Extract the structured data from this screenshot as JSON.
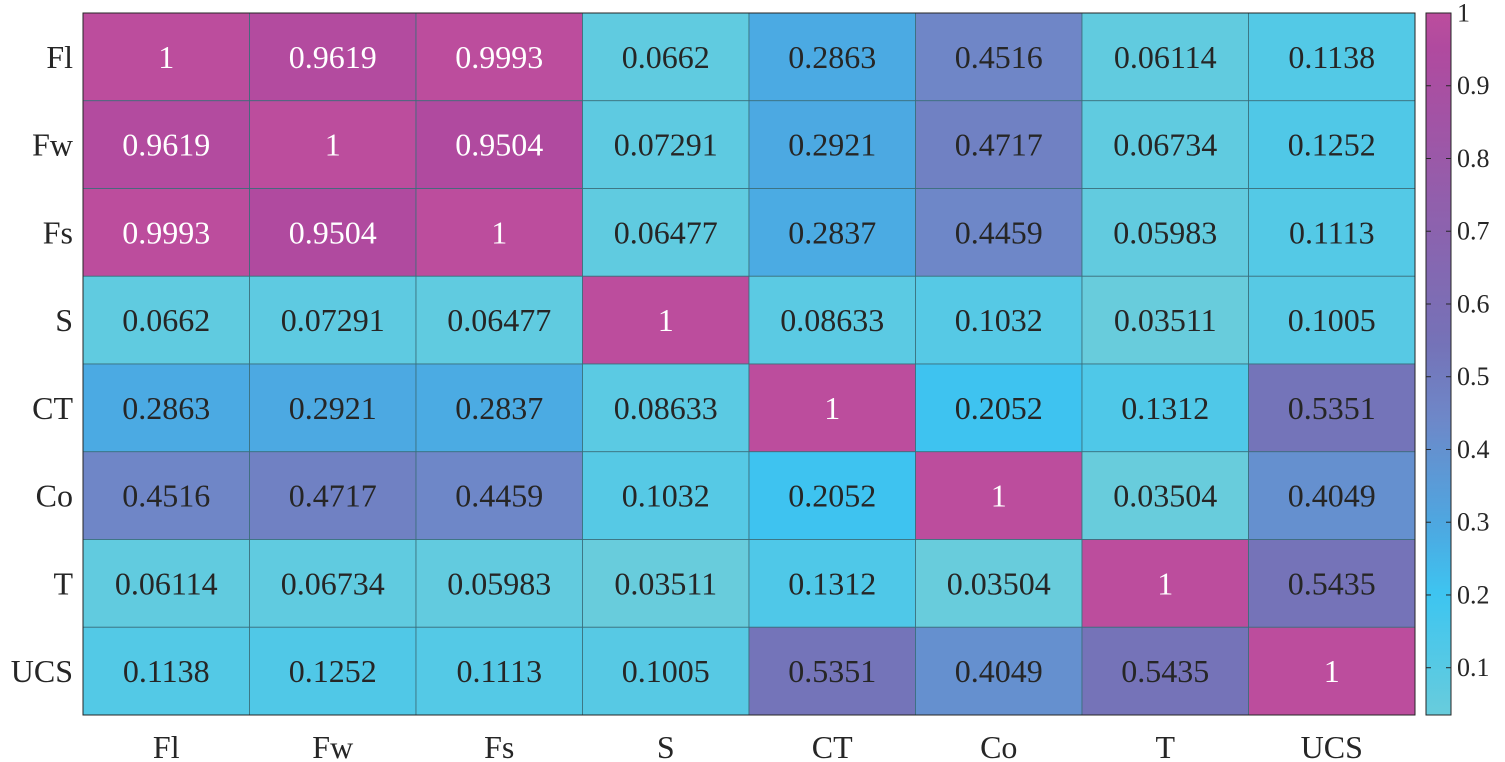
{
  "chart_data": {
    "type": "heatmap",
    "title": "",
    "xlabel": "",
    "ylabel": "",
    "x_categories": [
      "Fl",
      "Fw",
      "Fs",
      "S",
      "CT",
      "Co",
      "T",
      "UCS"
    ],
    "y_categories": [
      "Fl",
      "Fw",
      "Fs",
      "S",
      "CT",
      "Co",
      "T",
      "UCS"
    ],
    "matrix": [
      [
        1,
        0.9619,
        0.9993,
        0.0662,
        0.2863,
        0.4516,
        0.06114,
        0.1138
      ],
      [
        0.9619,
        1,
        0.9504,
        0.07291,
        0.2921,
        0.4717,
        0.06734,
        0.1252
      ],
      [
        0.9993,
        0.9504,
        1,
        0.06477,
        0.2837,
        0.4459,
        0.05983,
        0.1113
      ],
      [
        0.0662,
        0.07291,
        0.06477,
        1,
        0.08633,
        0.1032,
        0.03511,
        0.1005
      ],
      [
        0.2863,
        0.2921,
        0.2837,
        0.08633,
        1,
        0.2052,
        0.1312,
        0.5351
      ],
      [
        0.4516,
        0.4717,
        0.4459,
        0.1032,
        0.2052,
        1,
        0.03504,
        0.4049
      ],
      [
        0.06114,
        0.06734,
        0.05983,
        0.03511,
        0.1312,
        0.03504,
        1,
        0.5435
      ],
      [
        0.1138,
        0.1252,
        0.1113,
        0.1005,
        0.5351,
        0.4049,
        0.5435,
        1
      ]
    ],
    "cell_labels": [
      [
        "1",
        "0.9619",
        "0.9993",
        "0.0662",
        "0.2863",
        "0.4516",
        "0.06114",
        "0.1138"
      ],
      [
        "0.9619",
        "1",
        "0.9504",
        "0.07291",
        "0.2921",
        "0.4717",
        "0.06734",
        "0.1252"
      ],
      [
        "0.9993",
        "0.9504",
        "1",
        "0.06477",
        "0.2837",
        "0.4459",
        "0.05983",
        "0.1113"
      ],
      [
        "0.0662",
        "0.07291",
        "0.06477",
        "1",
        "0.08633",
        "0.1032",
        "0.03511",
        "0.1005"
      ],
      [
        "0.2863",
        "0.2921",
        "0.2837",
        "0.08633",
        "1",
        "0.2052",
        "0.1312",
        "0.5351"
      ],
      [
        "0.4516",
        "0.4717",
        "0.4459",
        "0.1032",
        "0.2052",
        "1",
        "0.03504",
        "0.4049"
      ],
      [
        "0.06114",
        "0.06734",
        "0.05983",
        "0.03511",
        "0.1312",
        "0.03504",
        "1",
        "0.5435"
      ],
      [
        "0.1138",
        "0.1252",
        "0.1113",
        "0.1005",
        "0.5351",
        "0.4049",
        "0.5435",
        "1"
      ]
    ],
    "colorbar": {
      "range": [
        0.035,
        1
      ],
      "ticks": [
        0.1,
        0.2,
        0.3,
        0.4,
        0.5,
        0.6,
        0.7,
        0.8,
        0.9,
        1
      ],
      "tick_labels": [
        "0.1",
        "0.2",
        "0.3",
        "0.4",
        "0.5",
        "0.6",
        "0.7",
        "0.8",
        "0.9",
        "1"
      ],
      "colors": [
        {
          "v": 0.035,
          "c": "#68ccdc"
        },
        {
          "v": 0.2,
          "c": "#3dc5f1"
        },
        {
          "v": 0.29,
          "c": "#4ca9e2"
        },
        {
          "v": 0.45,
          "c": "#6f86c7"
        },
        {
          "v": 0.54,
          "c": "#7473b8"
        },
        {
          "v": 0.95,
          "c": "#b04a9f"
        },
        {
          "v": 1.0,
          "c": "#bc4d9d"
        }
      ],
      "placement": "right"
    },
    "text_colors": {
      "light": "#ffffff",
      "dark": "#262626"
    },
    "grid": true
  }
}
